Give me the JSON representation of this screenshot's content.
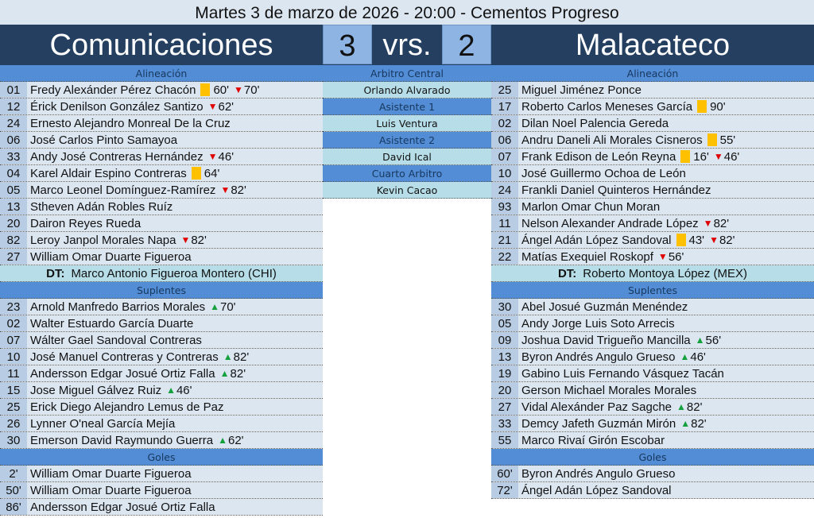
{
  "title": "Martes 3 de marzo de 2026 - 20:00 - Cementos Progreso",
  "home": {
    "name": "Comunicaciones",
    "score": "3"
  },
  "vs": "vrs.",
  "away": {
    "name": "Malacateco",
    "score": "2"
  },
  "labels": {
    "lineup": "Alineación",
    "subs": "Suplentes",
    "goals": "Goles",
    "dt": "DT:"
  },
  "colors": {
    "header": "#243f60",
    "section": "#538dd5",
    "number_cell": "#b8cce4",
    "name_cell": "#dce6f1",
    "yellow_card": "#ffc000",
    "sub_out": "#e00000",
    "sub_in": "#14a03c"
  },
  "referees": [
    {
      "role": "Arbitro Central",
      "name": "Orlando Alvarado"
    },
    {
      "role": "Asistente 1",
      "name": "Luis Ventura"
    },
    {
      "role": "Asistente 2",
      "name": "David Ical"
    },
    {
      "role": "Cuarto Arbitro",
      "name": "Kevin Cacao"
    }
  ],
  "home_team": {
    "lineup": [
      {
        "n": "01",
        "name": "Fredy Alexánder Pérez Chacón",
        "ev": [
          [
            "yellow",
            "60'"
          ],
          [
            "out",
            "70'"
          ]
        ]
      },
      {
        "n": "12",
        "name": "Érick Denilson González Santizo",
        "ev": [
          [
            "out",
            "62'"
          ]
        ]
      },
      {
        "n": "24",
        "name": "Ernesto Alejandro Monreal De la Cruz",
        "ev": []
      },
      {
        "n": "06",
        "name": "José Carlos Pinto Samayoa",
        "ev": []
      },
      {
        "n": "33",
        "name": "Andy José Contreras Hernández",
        "ev": [
          [
            "out",
            "46'"
          ]
        ]
      },
      {
        "n": "04",
        "name": "Karel Aldair Espino Contreras",
        "ev": [
          [
            "yellow",
            "64'"
          ]
        ]
      },
      {
        "n": "05",
        "name": "Marco Leonel Domínguez-Ramírez",
        "ev": [
          [
            "out",
            "82'"
          ]
        ]
      },
      {
        "n": "13",
        "name": "Stheven Adán Robles Ruíz",
        "ev": []
      },
      {
        "n": "20",
        "name": "Dairon Reyes Rueda",
        "ev": []
      },
      {
        "n": "82",
        "name": "Leroy Janpol Morales Napa",
        "ev": [
          [
            "out",
            "82'"
          ]
        ]
      },
      {
        "n": "27",
        "name": "William Omar Duarte Figueroa",
        "ev": []
      }
    ],
    "coach": "Marco Antonio Figueroa Montero (CHI)",
    "subs": [
      {
        "n": "23",
        "name": "Arnold Manfredo Barrios Morales",
        "ev": [
          [
            "in",
            "70'"
          ]
        ]
      },
      {
        "n": "02",
        "name": "Walter Estuardo García Duarte",
        "ev": []
      },
      {
        "n": "07",
        "name": "Wálter Gael Sandoval Contreras",
        "ev": []
      },
      {
        "n": "10",
        "name": "José Manuel Contreras y Contreras",
        "ev": [
          [
            "in",
            "82'"
          ]
        ]
      },
      {
        "n": "11",
        "name": "Andersson Edgar Josué Ortiz Falla",
        "ev": [
          [
            "in",
            "82'"
          ]
        ]
      },
      {
        "n": "15",
        "name": "Jose Miguel Gálvez Ruiz",
        "ev": [
          [
            "in",
            "46'"
          ]
        ]
      },
      {
        "n": "25",
        "name": "Erick Diego Alejandro Lemus de Paz",
        "ev": []
      },
      {
        "n": "26",
        "name": "Lynner O'neal García Mejía",
        "ev": []
      },
      {
        "n": "30",
        "name": "Emerson David Raymundo Guerra",
        "ev": [
          [
            "in",
            "62'"
          ]
        ]
      }
    ],
    "goals": [
      {
        "n": "2'",
        "name": "William Omar Duarte Figueroa"
      },
      {
        "n": "50'",
        "name": "William Omar Duarte Figueroa"
      },
      {
        "n": "86'",
        "name": "Andersson Edgar Josué Ortiz Falla"
      }
    ]
  },
  "away_team": {
    "lineup": [
      {
        "n": "25",
        "name": "Miguel Jiménez Ponce",
        "ev": []
      },
      {
        "n": "17",
        "name": "Roberto Carlos Meneses García",
        "ev": [
          [
            "yellow",
            "90'"
          ]
        ]
      },
      {
        "n": "02",
        "name": "Dilan Noel Palencia Gereda",
        "ev": []
      },
      {
        "n": "06",
        "name": "Andru Daneli Ali Morales Cisneros",
        "ev": [
          [
            "yellow",
            "55'"
          ]
        ]
      },
      {
        "n": "07",
        "name": "Frank Edison de León Reyna",
        "ev": [
          [
            "yellow",
            "16'"
          ],
          [
            "out",
            "46'"
          ]
        ]
      },
      {
        "n": "10",
        "name": "José Guillermo Ochoa de León",
        "ev": []
      },
      {
        "n": "24",
        "name": "Frankli Daniel Quinteros Hernández",
        "ev": []
      },
      {
        "n": "93",
        "name": "Marlon Omar Chun Moran",
        "ev": []
      },
      {
        "n": "11",
        "name": "Nelson Alexander Andrade López",
        "ev": [
          [
            "out",
            "82'"
          ]
        ]
      },
      {
        "n": "21",
        "name": "Ángel Adán López Sandoval",
        "ev": [
          [
            "yellow",
            "43'"
          ],
          [
            "out",
            "82'"
          ]
        ]
      },
      {
        "n": "22",
        "name": "Matías Exequiel Roskopf",
        "ev": [
          [
            "out",
            "56'"
          ]
        ]
      }
    ],
    "coach": "Roberto Montoya López (MEX)",
    "subs": [
      {
        "n": "30",
        "name": "Abel Josué Guzmán Menéndez",
        "ev": []
      },
      {
        "n": "05",
        "name": "Andy Jorge Luis Soto Arrecis",
        "ev": []
      },
      {
        "n": "09",
        "name": "Joshua David Trigueño Mancilla",
        "ev": [
          [
            "in",
            "56'"
          ]
        ]
      },
      {
        "n": "13",
        "name": "Byron Andrés Angulo Grueso",
        "ev": [
          [
            "in",
            "46'"
          ]
        ]
      },
      {
        "n": "19",
        "name": "Gabino Luis Fernando Vásquez Tacán",
        "ev": []
      },
      {
        "n": "20",
        "name": "Gerson Michael Morales Morales",
        "ev": []
      },
      {
        "n": "27",
        "name": "Vidal Alexánder Paz Sagche",
        "ev": [
          [
            "in",
            "82'"
          ]
        ]
      },
      {
        "n": "33",
        "name": "Demcy Jafeth Guzmán Mirón",
        "ev": [
          [
            "in",
            "82'"
          ]
        ]
      },
      {
        "n": "55",
        "name": "Marco Rivaí Girón Escobar",
        "ev": []
      }
    ],
    "goals": [
      {
        "n": "60'",
        "name": "Byron Andrés Angulo Grueso"
      },
      {
        "n": "72'",
        "name": "Ángel Adán López Sandoval"
      }
    ]
  }
}
